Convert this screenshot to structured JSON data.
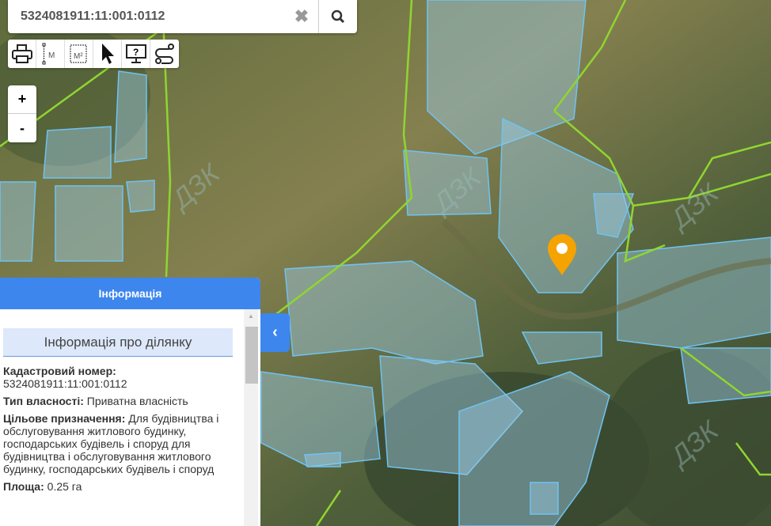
{
  "search": {
    "value": "5324081911:11:001:0112",
    "clear_icon": "close-icon",
    "search_icon": "search-icon"
  },
  "toolbar": {
    "items": [
      {
        "icon": "print-icon"
      },
      {
        "icon": "measure-distance-icon",
        "label": "M"
      },
      {
        "icon": "measure-area-icon",
        "label": "M²"
      },
      {
        "icon": "select-pointer-icon"
      },
      {
        "icon": "help-monitor-icon"
      },
      {
        "icon": "route-icon"
      }
    ]
  },
  "zoom": {
    "in": "+",
    "out": "-"
  },
  "map": {
    "watermark": "ДЗК",
    "marker_color": "#f5a300",
    "parcel_color": "#6ec3f2",
    "boundary_color": "#8fd630"
  },
  "panel": {
    "title": "Інформація",
    "subtitle": "Інформація про ділянку",
    "cadastral_label": "Кадастровий номер:",
    "cadastral_value": "5324081911:11:001:0112",
    "ownership_label": "Тип власності:",
    "ownership_value": "Приватна власність",
    "purpose_label": "Цільове призначення:",
    "purpose_value": "Для будівництва і обслуговування житлового будинку, господарських будівель і споруд для будівництва і обслуговування житлового будинку, господарських будівель і споруд",
    "area_label": "Площа:",
    "area_value": "0.25 га",
    "header_color": "#3d86ee"
  }
}
